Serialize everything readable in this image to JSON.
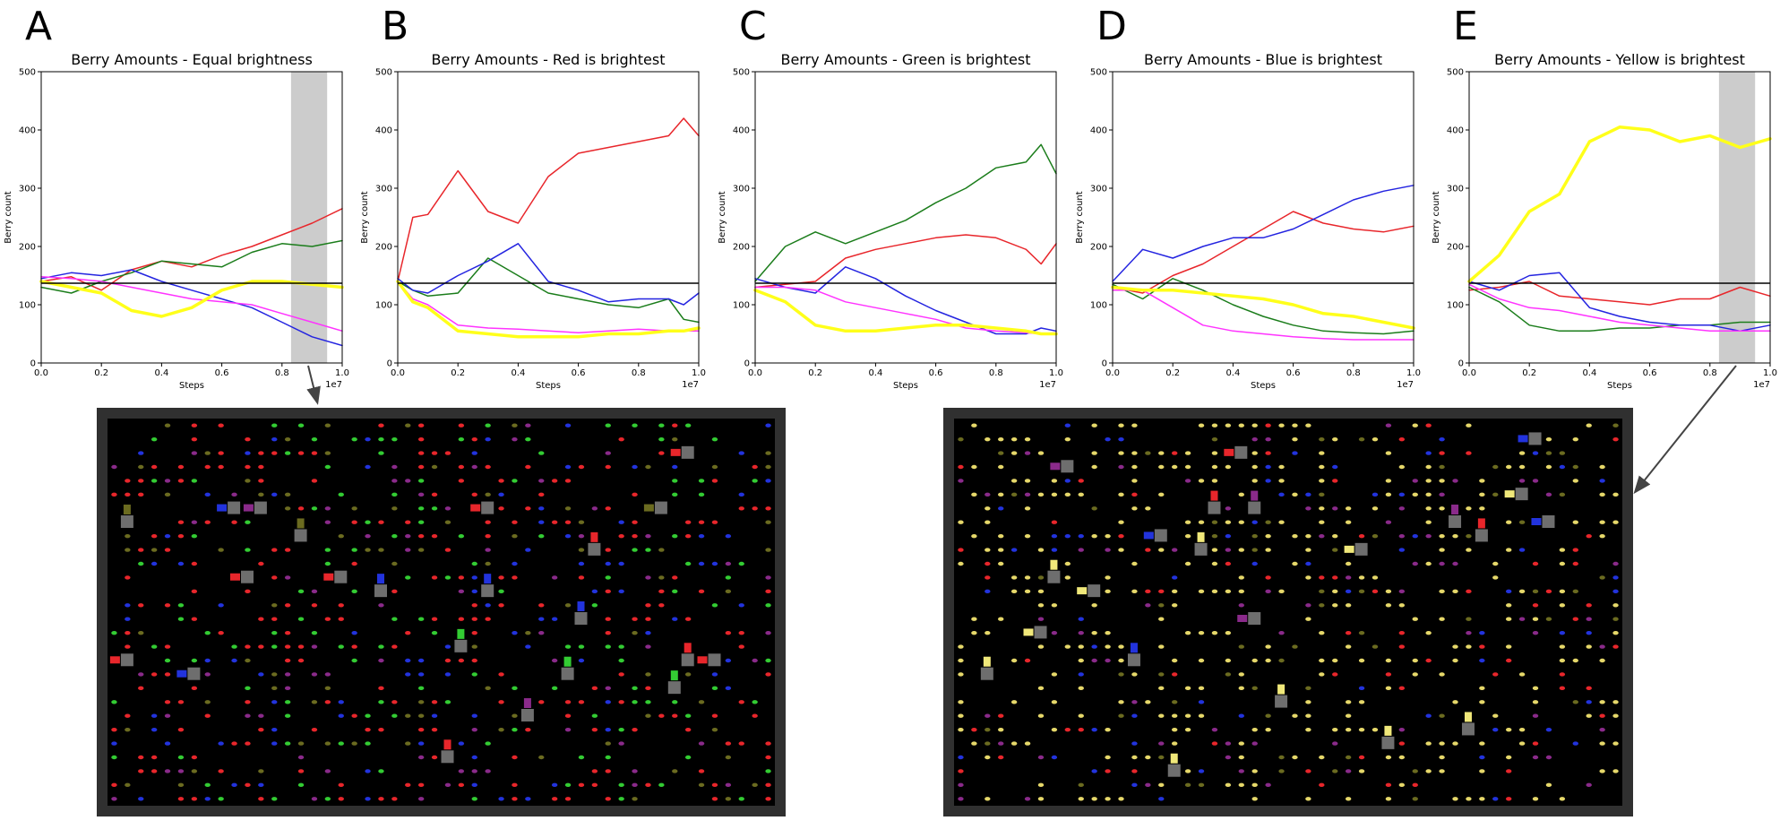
{
  "figure": {
    "panels": [
      {
        "letter": "A",
        "title": "Berry Amounts - Equal brightness",
        "highlight_band": [
          0.83,
          0.95
        ],
        "grid_seed": 11,
        "grid_variant": "mixed"
      },
      {
        "letter": "B",
        "title": "Berry Amounts - Red is brightest"
      },
      {
        "letter": "C",
        "title": "Berry Amounts - Green is brightest"
      },
      {
        "letter": "D",
        "title": "Berry Amounts - Blue is brightest"
      },
      {
        "letter": "E",
        "title": "Berry Amounts - Yellow is brightest",
        "highlight_band": [
          0.83,
          0.95
        ],
        "grid_seed": 37,
        "grid_variant": "yellow"
      }
    ],
    "colors": {
      "red": "#e8262b",
      "green": "#1b7d1b",
      "blue": "#2424e0",
      "magenta": "#ff33ff",
      "yellow": "#ffff1a",
      "baseline": "#000000",
      "highlight": "#cccccc",
      "frame": "#303030",
      "grid_bg": "#000000"
    }
  },
  "chart_data": [
    {
      "type": "line",
      "title": "Berry Amounts - Equal brightness",
      "xlabel": "Steps",
      "ylabel": "Berry count",
      "x_scale_label": "1e7",
      "xlim": [
        0,
        1.0
      ],
      "ylim": [
        0,
        500
      ],
      "xticks": [
        "0.0",
        "0.2",
        "0.4",
        "0.6",
        "0.8",
        "1.0"
      ],
      "yticks": [
        "0",
        "100",
        "200",
        "300",
        "400",
        "500"
      ],
      "x": [
        0,
        0.1,
        0.2,
        0.3,
        0.4,
        0.5,
        0.6,
        0.7,
        0.8,
        0.9,
        1.0
      ],
      "baseline": 137,
      "series": [
        {
          "color": "red",
          "values": [
            140,
            148,
            125,
            160,
            175,
            165,
            185,
            200,
            220,
            240,
            265
          ]
        },
        {
          "color": "green",
          "values": [
            130,
            120,
            140,
            155,
            175,
            170,
            165,
            190,
            205,
            200,
            210
          ]
        },
        {
          "color": "blue",
          "values": [
            145,
            155,
            150,
            160,
            140,
            125,
            110,
            95,
            70,
            45,
            30
          ]
        },
        {
          "color": "magenta",
          "values": [
            148,
            145,
            140,
            130,
            120,
            110,
            105,
            100,
            85,
            70,
            55
          ]
        },
        {
          "color": "yellow",
          "values": [
            140,
            130,
            120,
            90,
            80,
            95,
            125,
            140,
            140,
            135,
            130
          ]
        }
      ]
    },
    {
      "type": "line",
      "title": "Berry Amounts - Red is brightest",
      "xlabel": "Steps",
      "ylabel": "Berry count",
      "x_scale_label": "1e7",
      "xlim": [
        0,
        1.0
      ],
      "ylim": [
        0,
        500
      ],
      "xticks": [
        "0.0",
        "0.2",
        "0.4",
        "0.6",
        "0.8",
        "1.0"
      ],
      "yticks": [
        "0",
        "100",
        "200",
        "300",
        "400",
        "500"
      ],
      "x": [
        0,
        0.05,
        0.1,
        0.2,
        0.3,
        0.4,
        0.5,
        0.6,
        0.7,
        0.8,
        0.9,
        0.95,
        1.0
      ],
      "baseline": 137,
      "series": [
        {
          "color": "red",
          "values": [
            140,
            250,
            255,
            330,
            260,
            240,
            320,
            360,
            370,
            380,
            390,
            420,
            390
          ]
        },
        {
          "color": "green",
          "values": [
            140,
            125,
            115,
            120,
            180,
            150,
            120,
            110,
            100,
            95,
            110,
            75,
            70
          ]
        },
        {
          "color": "blue",
          "values": [
            145,
            125,
            120,
            150,
            175,
            205,
            140,
            125,
            105,
            110,
            110,
            100,
            120
          ]
        },
        {
          "color": "magenta",
          "values": [
            140,
            110,
            100,
            65,
            60,
            58,
            55,
            52,
            55,
            58,
            55,
            55,
            55
          ]
        },
        {
          "color": "yellow",
          "values": [
            140,
            105,
            95,
            55,
            50,
            45,
            45,
            45,
            50,
            50,
            55,
            55,
            60
          ]
        }
      ]
    },
    {
      "type": "line",
      "title": "Berry Amounts - Green is brightest",
      "xlabel": "Steps",
      "ylabel": "Berry count",
      "x_scale_label": "1e7",
      "xlim": [
        0,
        1.0
      ],
      "ylim": [
        0,
        500
      ],
      "xticks": [
        "0.0",
        "0.2",
        "0.4",
        "0.6",
        "0.8",
        "1.0"
      ],
      "yticks": [
        "0",
        "100",
        "200",
        "300",
        "400",
        "500"
      ],
      "x": [
        0,
        0.1,
        0.2,
        0.3,
        0.4,
        0.5,
        0.6,
        0.7,
        0.8,
        0.9,
        0.95,
        1.0
      ],
      "baseline": 137,
      "series": [
        {
          "color": "red",
          "values": [
            130,
            135,
            140,
            180,
            195,
            205,
            215,
            220,
            215,
            195,
            170,
            205
          ]
        },
        {
          "color": "green",
          "values": [
            140,
            200,
            225,
            205,
            225,
            245,
            275,
            300,
            335,
            345,
            375,
            325
          ]
        },
        {
          "color": "blue",
          "values": [
            145,
            130,
            120,
            165,
            145,
            115,
            90,
            70,
            50,
            50,
            60,
            55
          ]
        },
        {
          "color": "magenta",
          "values": [
            130,
            130,
            125,
            105,
            95,
            85,
            75,
            60,
            55,
            52,
            50,
            52
          ]
        },
        {
          "color": "yellow",
          "values": [
            125,
            105,
            65,
            55,
            55,
            60,
            65,
            65,
            60,
            55,
            50,
            50
          ]
        }
      ]
    },
    {
      "type": "line",
      "title": "Berry Amounts - Blue is brightest",
      "xlabel": "Steps",
      "ylabel": "Berry count",
      "x_scale_label": "1e7",
      "xlim": [
        0,
        1.0
      ],
      "ylim": [
        0,
        500
      ],
      "xticks": [
        "0.0",
        "0.2",
        "0.4",
        "0.6",
        "0.8",
        "1.0"
      ],
      "yticks": [
        "0",
        "100",
        "200",
        "300",
        "400",
        "500"
      ],
      "x": [
        0,
        0.1,
        0.2,
        0.3,
        0.4,
        0.5,
        0.6,
        0.7,
        0.8,
        0.9,
        1.0
      ],
      "baseline": 137,
      "series": [
        {
          "color": "red",
          "values": [
            130,
            120,
            150,
            170,
            200,
            230,
            260,
            240,
            230,
            225,
            235
          ]
        },
        {
          "color": "green",
          "values": [
            135,
            110,
            145,
            125,
            100,
            80,
            65,
            55,
            52,
            50,
            55
          ]
        },
        {
          "color": "blue",
          "values": [
            140,
            195,
            180,
            200,
            215,
            215,
            230,
            255,
            280,
            295,
            305
          ]
        },
        {
          "color": "magenta",
          "values": [
            125,
            125,
            95,
            65,
            55,
            50,
            45,
            42,
            40,
            40,
            40
          ]
        },
        {
          "color": "yellow",
          "values": [
            130,
            125,
            125,
            120,
            115,
            110,
            100,
            85,
            80,
            70,
            60
          ]
        }
      ]
    },
    {
      "type": "line",
      "title": "Berry Amounts - Yellow is brightest",
      "xlabel": "Steps",
      "ylabel": "Berry count",
      "x_scale_label": "1e7",
      "xlim": [
        0,
        1.0
      ],
      "ylim": [
        0,
        500
      ],
      "xticks": [
        "0.0",
        "0.2",
        "0.4",
        "0.6",
        "0.8",
        "1.0"
      ],
      "yticks": [
        "0",
        "100",
        "200",
        "300",
        "400",
        "500"
      ],
      "x": [
        0,
        0.1,
        0.2,
        0.3,
        0.4,
        0.5,
        0.6,
        0.7,
        0.8,
        0.9,
        1.0
      ],
      "baseline": 137,
      "series": [
        {
          "color": "red",
          "values": [
            125,
            130,
            140,
            115,
            110,
            105,
            100,
            110,
            110,
            130,
            115
          ]
        },
        {
          "color": "green",
          "values": [
            130,
            105,
            65,
            55,
            55,
            60,
            60,
            65,
            65,
            70,
            70
          ]
        },
        {
          "color": "blue",
          "values": [
            140,
            125,
            150,
            155,
            95,
            80,
            70,
            65,
            65,
            55,
            65
          ]
        },
        {
          "color": "magenta",
          "values": [
            135,
            110,
            95,
            90,
            80,
            70,
            65,
            60,
            55,
            55,
            55
          ]
        },
        {
          "color": "yellow",
          "values": [
            140,
            185,
            260,
            290,
            380,
            405,
            400,
            380,
            390,
            370,
            385
          ]
        }
      ]
    }
  ]
}
